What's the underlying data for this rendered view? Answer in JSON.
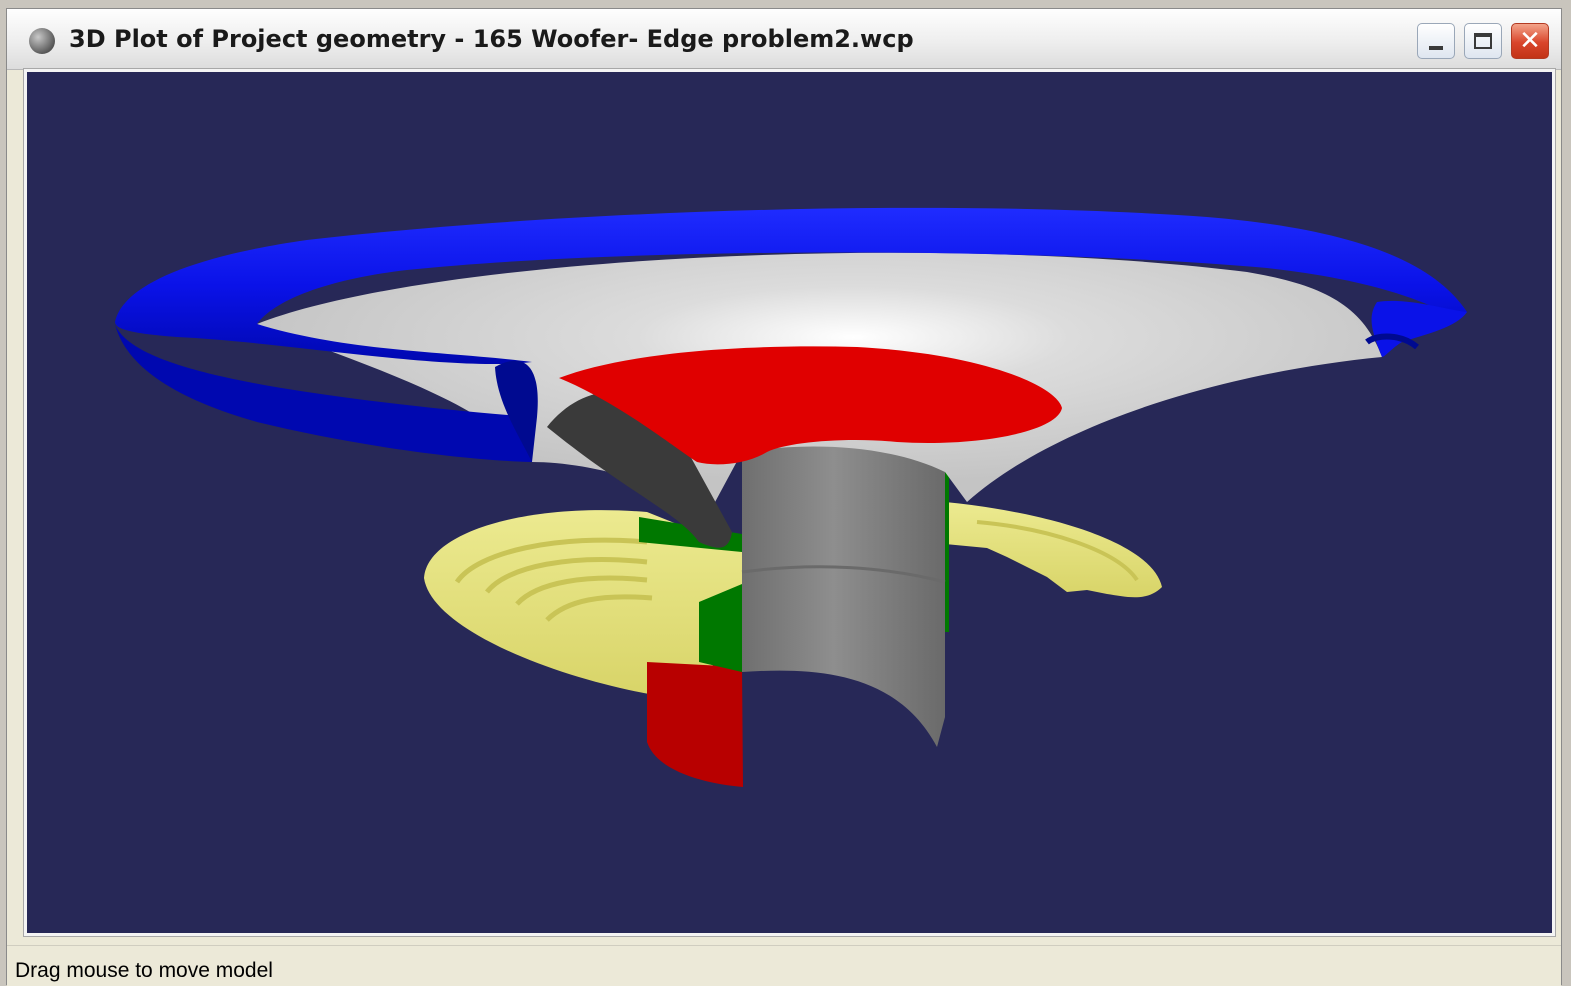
{
  "window": {
    "title": "3D Plot of Project geometry - 165 Woofer- Edge problem2.wcp",
    "icon": "app-globe-icon",
    "controls": {
      "minimize": "minimize-icon",
      "maximize": "maximize-icon",
      "close": "close-icon"
    }
  },
  "viewport": {
    "background": "#272857",
    "model_parts": [
      {
        "name": "surround",
        "color": "#0a12e8"
      },
      {
        "name": "cone",
        "color": "#d2d2d2"
      },
      {
        "name": "dust-cap",
        "color": "#e00000"
      },
      {
        "name": "spider",
        "color": "#e8e47a"
      },
      {
        "name": "voice-coil-former",
        "color": "#7d7d7d"
      },
      {
        "name": "voice-coil",
        "color": "#007800"
      },
      {
        "name": "former-bottom",
        "color": "#b80000"
      },
      {
        "name": "cone-neck",
        "color": "#3a3a3a"
      }
    ]
  },
  "status": {
    "text": "Drag mouse to move model"
  }
}
